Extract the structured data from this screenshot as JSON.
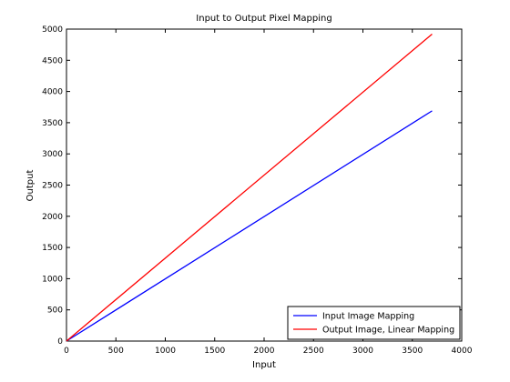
{
  "chart_data": {
    "type": "line",
    "title": "Input to Output Pixel Mapping",
    "xlabel": "Input",
    "ylabel": "Output",
    "xlim": [
      0,
      4000
    ],
    "ylim": [
      0,
      5000
    ],
    "xticks": [
      0,
      500,
      1000,
      1500,
      2000,
      2500,
      3000,
      3500,
      4000
    ],
    "yticks": [
      0,
      500,
      1000,
      1500,
      2000,
      2500,
      3000,
      3500,
      4000,
      4500,
      5000
    ],
    "grid": false,
    "legend_position": "bottom-right",
    "series": [
      {
        "name": "Input Image Mapping",
        "color": "#0000ff",
        "x": [
          0,
          3700
        ],
        "y": [
          0,
          3690
        ]
      },
      {
        "name": "Output Image, Linear Mapping",
        "color": "#ff0000",
        "x": [
          0,
          3700
        ],
        "y": [
          0,
          4920
        ]
      }
    ]
  }
}
